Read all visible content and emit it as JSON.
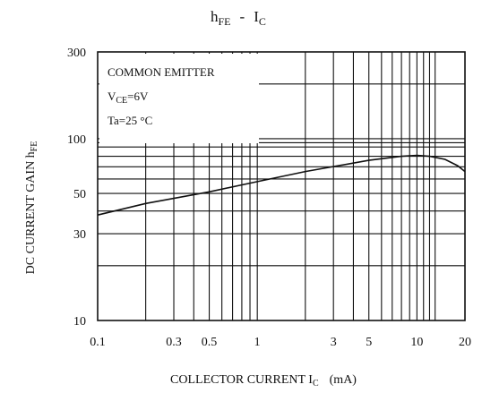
{
  "chart_data": {
    "type": "line",
    "title": {
      "h": "h",
      "fe": "FE",
      "dash": "-",
      "i": "I",
      "c": "C"
    },
    "xlabel": {
      "main": "COLLECTOR CURRENT I",
      "sub": "C",
      "unit": "(mA)"
    },
    "ylabel": {
      "main": "DC CURRENT GAIN h",
      "sub": "FE"
    },
    "annotation": {
      "line1": "COMMON EMITTER",
      "line2_main": "V",
      "line2_sub": "CE",
      "line2_tail": "=6V",
      "line3": "Ta=25 °C"
    },
    "x_scale": "log",
    "y_scale": "log",
    "xlim": [
      0.1,
      20
    ],
    "ylim": [
      10,
      300
    ],
    "x_ticks": [
      {
        "value": 0.1,
        "label": "0.1"
      },
      {
        "value": 0.3,
        "label": "0.3"
      },
      {
        "value": 0.5,
        "label": "0.5"
      },
      {
        "value": 1,
        "label": "1"
      },
      {
        "value": 3,
        "label": "3"
      },
      {
        "value": 5,
        "label": "5"
      },
      {
        "value": 10,
        "label": "10"
      },
      {
        "value": 20,
        "label": "20"
      }
    ],
    "y_ticks": [
      {
        "value": 10,
        "label": "10"
      },
      {
        "value": 30,
        "label": "30"
      },
      {
        "value": 50,
        "label": "50"
      },
      {
        "value": 100,
        "label": "100"
      },
      {
        "value": 300,
        "label": "300"
      }
    ],
    "x_grid": [
      0.2,
      0.3,
      0.4,
      0.5,
      0.6,
      0.7,
      0.8,
      0.9,
      1,
      2,
      3,
      4,
      5,
      6,
      7,
      8,
      9,
      10,
      11,
      12,
      13
    ],
    "y_grid": [
      20,
      30,
      40,
      50,
      60,
      70,
      80,
      90,
      95,
      100,
      200
    ],
    "grid": true,
    "series": [
      {
        "x": [
          0.1,
          0.2,
          0.5,
          1,
          2,
          5,
          8,
          10,
          12,
          15,
          18,
          20
        ],
        "y": [
          38,
          44,
          51,
          58,
          66,
          76,
          80,
          81,
          80,
          77,
          71,
          66
        ]
      }
    ]
  }
}
